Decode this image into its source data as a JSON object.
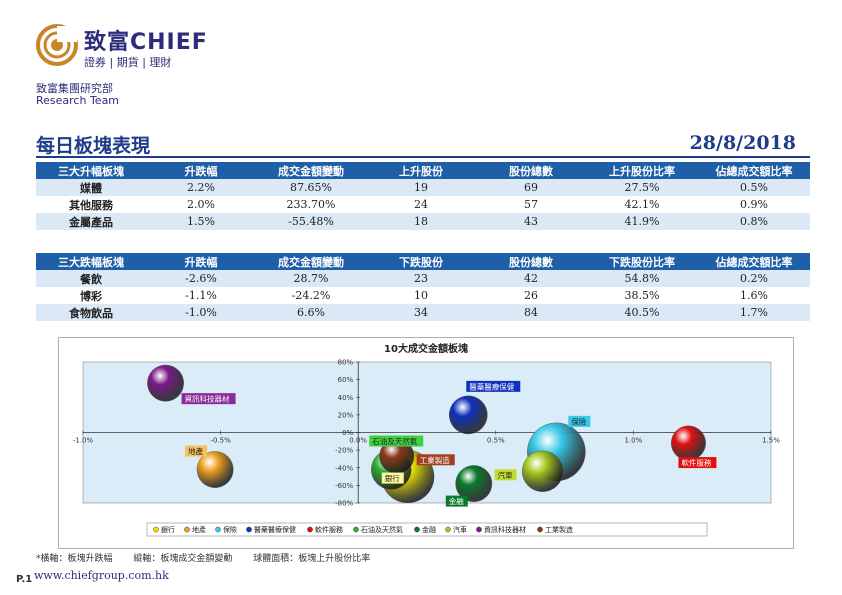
{
  "header": {
    "brand": "致富CHIEF",
    "tagline": "證券 | 期貨 | 理財",
    "dept_cn": "致富集團研究部",
    "dept_en": "Research Team",
    "colors": {
      "brand_navy": "#2c2c7a",
      "brand_gold": "#c8862a"
    }
  },
  "page": {
    "title": "每日板塊表現",
    "date": "28/8/2018"
  },
  "table_up": {
    "headers": [
      "三大升幅板塊",
      "升跌幅",
      "成交金額變動",
      "上升股份",
      "股份總數",
      "上升股份比率",
      "佔總成交額比率"
    ],
    "rows": [
      [
        "媒體",
        "2.2%",
        "87.65%",
        "19",
        "69",
        "27.5%",
        "0.5%"
      ],
      [
        "其他服務",
        "2.0%",
        "233.70%",
        "24",
        "57",
        "42.1%",
        "0.9%"
      ],
      [
        "金屬產品",
        "1.5%",
        "-55.48%",
        "18",
        "43",
        "41.9%",
        "0.8%"
      ]
    ]
  },
  "table_down": {
    "headers": [
      "三大跌幅板塊",
      "升跌幅",
      "成交金額變動",
      "下跌股份",
      "股份總數",
      "下跌股份比率",
      "佔總成交額比率"
    ],
    "rows": [
      [
        "餐飲",
        "-2.6%",
        "28.7%",
        "23",
        "42",
        "54.8%",
        "0.2%"
      ],
      [
        "博彩",
        "-1.1%",
        "-24.2%",
        "10",
        "26",
        "38.5%",
        "1.6%"
      ],
      [
        "食物飲品",
        "-1.0%",
        "6.6%",
        "34",
        "84",
        "40.5%",
        "1.7%"
      ]
    ]
  },
  "chart_data": {
    "type": "scatter",
    "title": "10大成交金額板塊",
    "xlim": [
      -1.0,
      1.5
    ],
    "ylim": [
      -80,
      80
    ],
    "x_ticks": [
      "-1.0%",
      "-0.5%",
      "0.0%",
      "0.5%",
      "1.0%",
      "1.5%"
    ],
    "y_ticks": [
      "80%",
      "60%",
      "40%",
      "20%",
      "0%",
      "-20%",
      "-40%",
      "-60%",
      "-80%"
    ],
    "legend_position": "bottom",
    "series": [
      {
        "name": "銀行",
        "x": 0.18,
        "y": -50,
        "size": 58,
        "color": "#e8e000",
        "label_color": "#fff8a0"
      },
      {
        "name": "地產",
        "x": -0.52,
        "y": -42,
        "size": 40,
        "color": "#f0a020",
        "label_color": "#f5c060"
      },
      {
        "name": "保險",
        "x": 0.72,
        "y": -22,
        "size": 64,
        "color": "#38c8e8",
        "label_color": "#38c8e8"
      },
      {
        "name": "醫藥醫療保健",
        "x": 0.4,
        "y": 20,
        "size": 42,
        "color": "#1030c0",
        "label_color": "#1030c0"
      },
      {
        "name": "軟件服務",
        "x": 1.2,
        "y": -12,
        "size": 38,
        "color": "#e01010",
        "label_color": "#e01010"
      },
      {
        "name": "石油及天然氣",
        "x": 0.12,
        "y": -42,
        "size": 44,
        "color": "#30b030",
        "label_color": "#40d040"
      },
      {
        "name": "金融",
        "x": 0.42,
        "y": -58,
        "size": 40,
        "color": "#0a7a2a",
        "label_color": "#0a7a2a"
      },
      {
        "name": "汽車",
        "x": 0.67,
        "y": -44,
        "size": 45,
        "color": "#a8c820",
        "label_color": "#c0dc30"
      },
      {
        "name": "資訊科技器材",
        "x": -0.7,
        "y": 56,
        "size": 40,
        "color": "#7a1a8a",
        "label_color": "#8a2a9a"
      },
      {
        "name": "工業製造",
        "x": 0.14,
        "y": -27,
        "size": 38,
        "color": "#8b3a1a",
        "label_color": "#a04020"
      }
    ]
  },
  "footer": {
    "notes": [
      "*橫軸：板塊升跌幅",
      "縱軸：板塊成交金額變動",
      "球體面積：板塊上升股份比率"
    ],
    "page_number": "P.1",
    "website": "www.chiefgroup.com.hk"
  }
}
